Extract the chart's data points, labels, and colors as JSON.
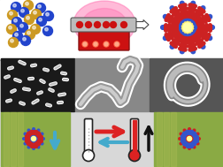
{
  "fig_width": 2.53,
  "fig_height": 1.89,
  "dpi": 100,
  "bg_color": "#d8d8d8",
  "top_box_color": "#ffffff",
  "top_box_border": "#aaaaaa",
  "blue_sphere": "#2244cc",
  "gold_sphere": "#cc9922",
  "nanorod_blue": "#3355cc",
  "nanorod_red": "#cc2222",
  "arrow_dark": "#333333",
  "cyan_arrow": "#44aacc",
  "red_arrow": "#dd2222",
  "thermometer_fill": "#dd2222",
  "thermo_outline": "#222222",
  "glow_pink": "#ff66aa",
  "machine_red": "#cc1111",
  "machine_dark": "#881111",
  "panel2_bg": "#888888",
  "panel3_bg": "#777777",
  "panel1_bg": "#1a1a1a",
  "slide_green": "#b8cc44",
  "slide_border": "#889933"
}
